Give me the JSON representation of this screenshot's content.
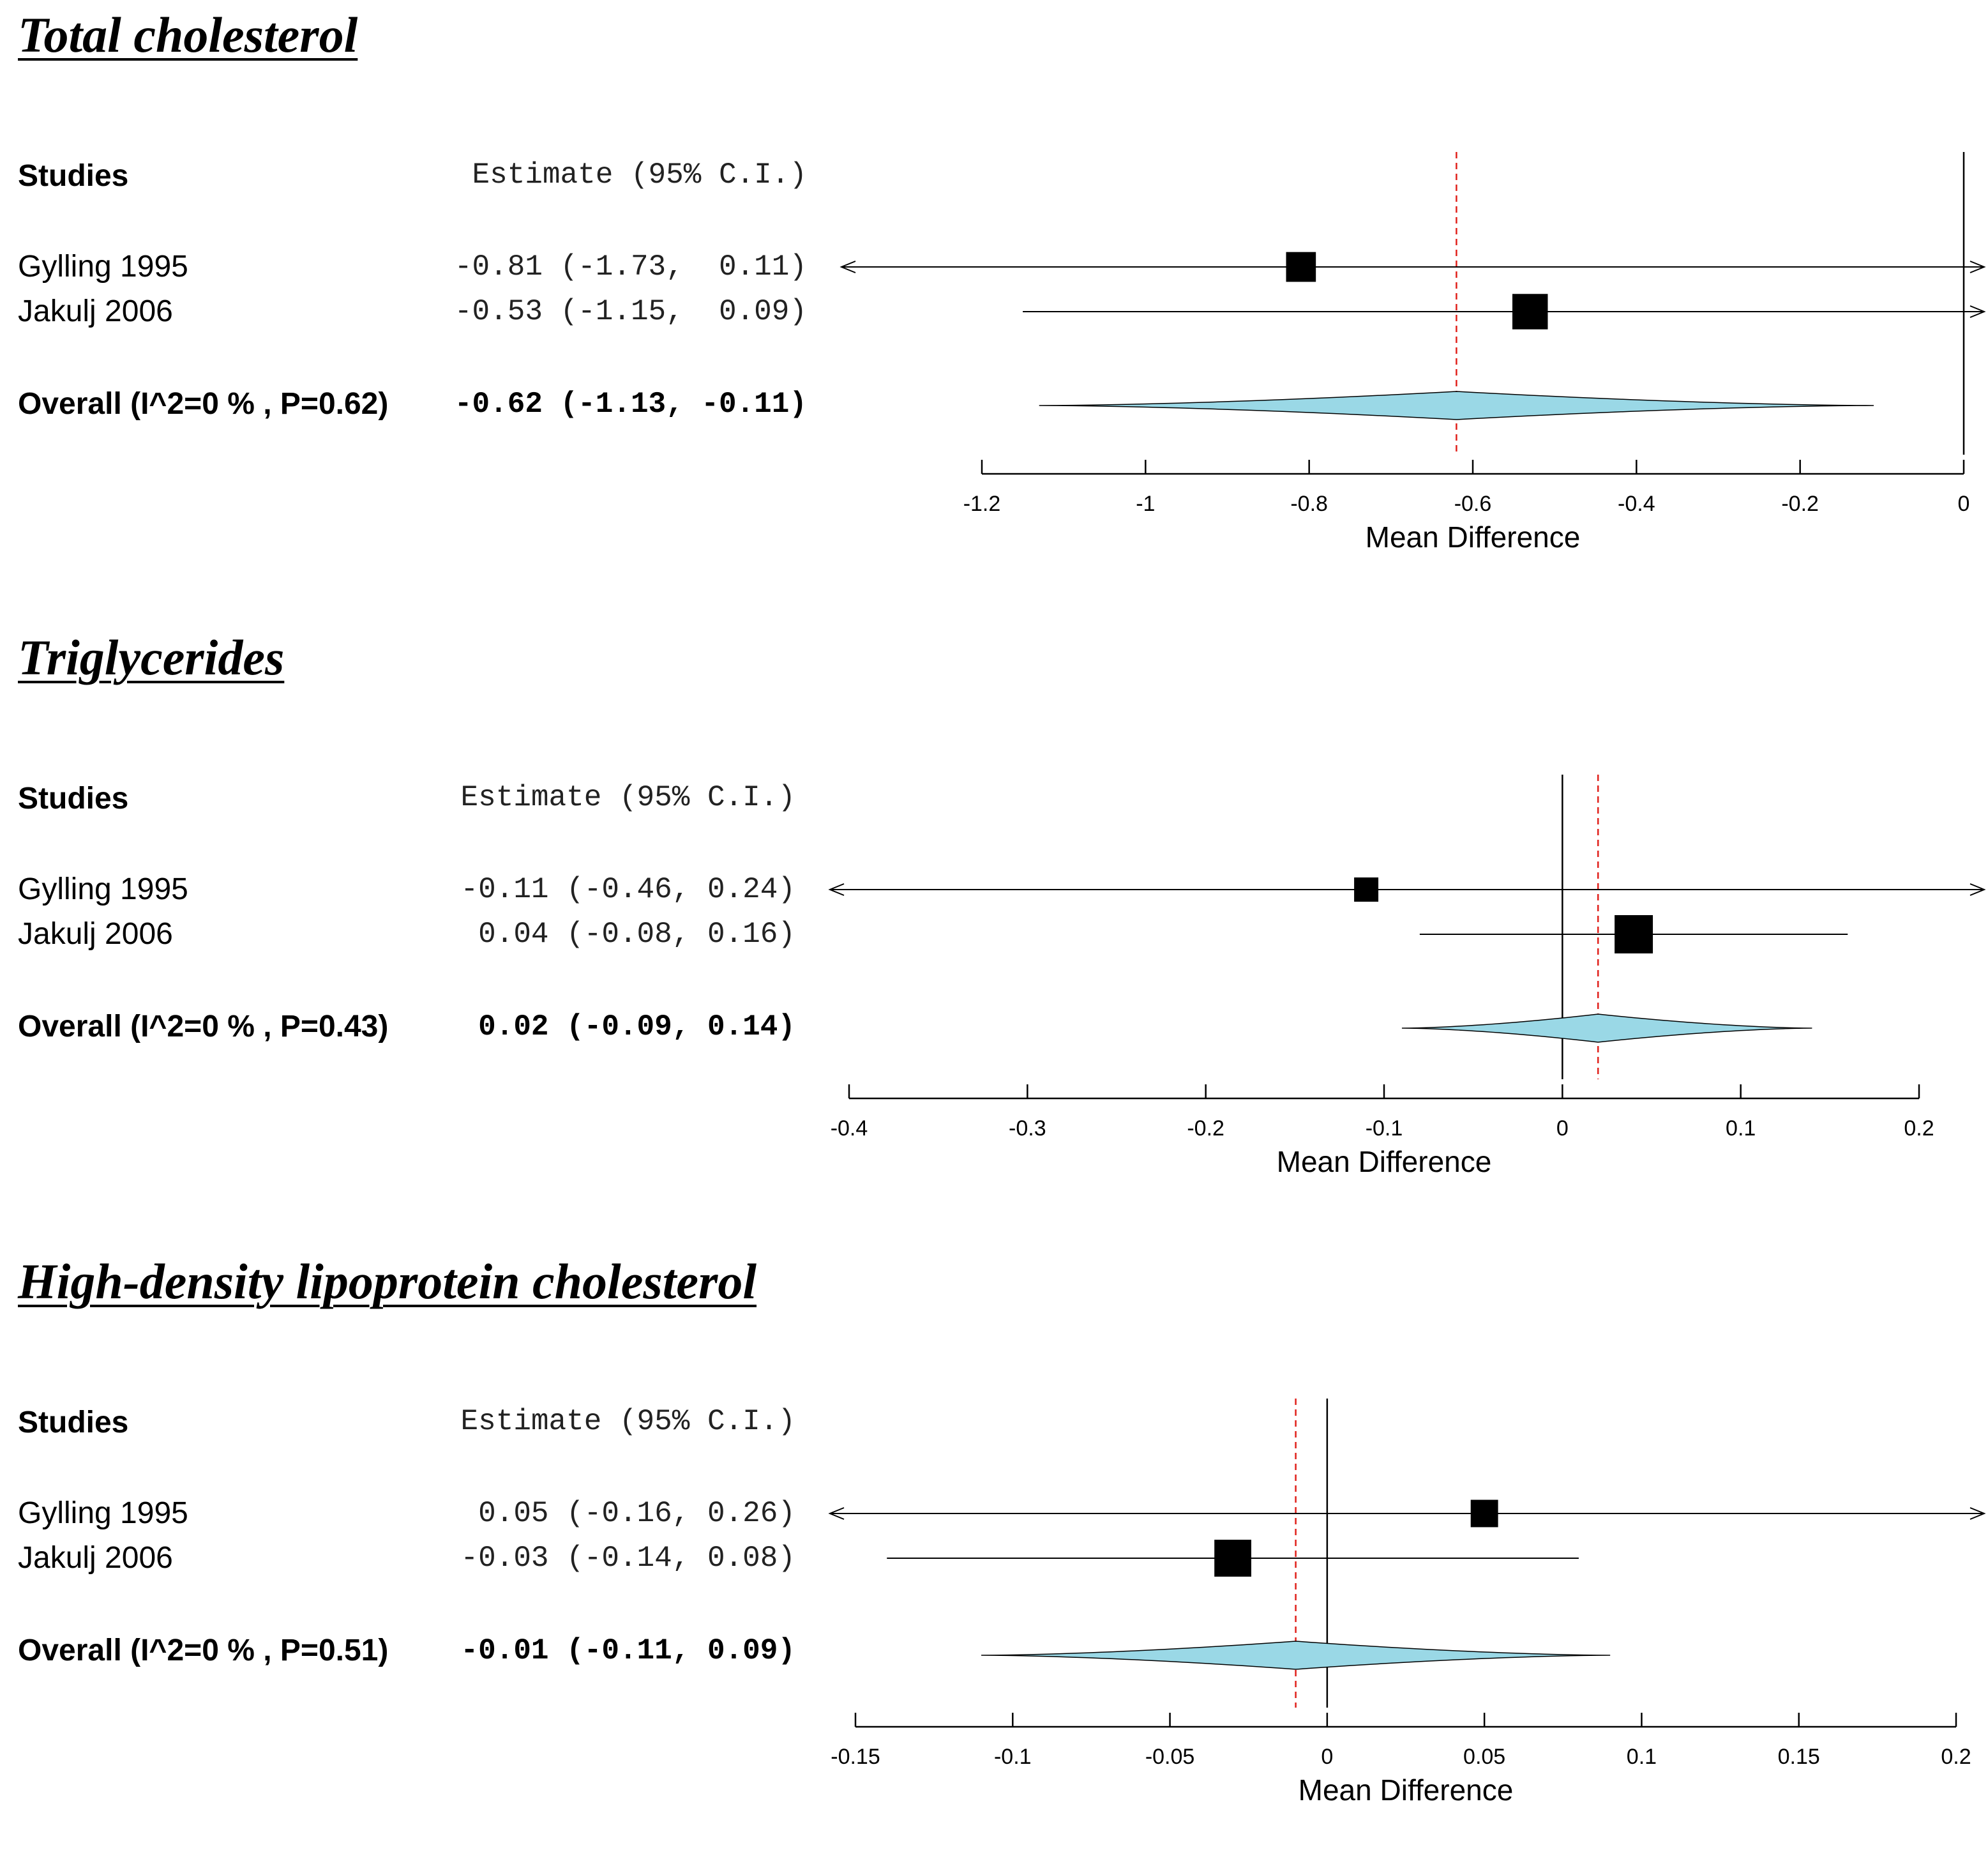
{
  "colors": {
    "diamond_fill": "#9ad8e6",
    "reference_line": "#e0201b",
    "marker": "#000000"
  },
  "chart_data": [
    {
      "type": "forest",
      "title": "Total cholesterol",
      "columns": {
        "studies": "Studies",
        "estimate": "Estimate (95% C.I.)"
      },
      "xlabel": "Mean Difference",
      "xlim": [
        -1.2,
        0
      ],
      "ticks": [
        -1.2,
        -1,
        -0.8,
        -0.6,
        -0.4,
        -0.2,
        0
      ],
      "tick_labels": [
        "-1.2",
        "-1",
        "-0.8",
        "-0.6",
        "-0.4",
        "-0.2",
        "0"
      ],
      "null_value": 0,
      "studies": [
        {
          "name": "Gylling 1995",
          "estimate_text": "-0.81 (-1.73,  0.11)",
          "est": -0.81,
          "lo": -1.73,
          "hi": 0.11,
          "weight": 0.33
        },
        {
          "name": "Jakulj 2006",
          "estimate_text": "-0.53 (-1.15,  0.09)",
          "est": -0.53,
          "lo": -1.15,
          "hi": 0.09,
          "weight": 0.67
        }
      ],
      "overall": {
        "label": "Overall (I^2=0 % , P=0.62)",
        "estimate_text": "-0.62 (-1.13, -0.11)",
        "est": -0.62,
        "lo": -1.13,
        "hi": -0.11
      }
    },
    {
      "type": "forest",
      "title": "Triglycerides",
      "columns": {
        "studies": "Studies",
        "estimate": "Estimate (95% C.I.)"
      },
      "xlabel": "Mean Difference",
      "xlim": [
        -0.4,
        0.2
      ],
      "ticks": [
        -0.4,
        -0.3,
        -0.2,
        -0.1,
        0,
        0.1,
        0.2
      ],
      "tick_labels": [
        "-0.4",
        "-0.3",
        "-0.2",
        "-0.1",
        "0",
        "0.1",
        "0.2"
      ],
      "null_value": 0,
      "studies": [
        {
          "name": "Gylling 1995",
          "estimate_text": "-0.11 (-0.46, 0.24)",
          "est": -0.11,
          "lo": -0.46,
          "hi": 0.24,
          "weight": 0.11
        },
        {
          "name": "Jakulj 2006",
          "estimate_text": " 0.04 (-0.08, 0.16)",
          "est": 0.04,
          "lo": -0.08,
          "hi": 0.16,
          "weight": 0.89
        }
      ],
      "overall": {
        "label": "Overall (I^2=0 % , P=0.43)",
        "estimate_text": " 0.02 (-0.09, 0.14)",
        "est": 0.02,
        "lo": -0.09,
        "hi": 0.14
      }
    },
    {
      "type": "forest",
      "title": "High-density lipoprotein cholesterol",
      "columns": {
        "studies": "Studies",
        "estimate": "Estimate (95% C.I.)"
      },
      "xlabel": "Mean Difference",
      "xlim": [
        -0.15,
        0.2
      ],
      "ticks": [
        -0.15,
        -0.1,
        -0.05,
        0,
        0.05,
        0.1,
        0.15,
        0.2
      ],
      "tick_labels": [
        "-0.15",
        "-0.1",
        "-0.05",
        "0",
        "0.05",
        "0.1",
        "0.15",
        "0.2"
      ],
      "null_value": 0,
      "studies": [
        {
          "name": "Gylling 1995",
          "estimate_text": " 0.05 (-0.16, 0.26)",
          "est": 0.05,
          "lo": -0.16,
          "hi": 0.26,
          "weight": 0.22
        },
        {
          "name": "Jakulj 2006",
          "estimate_text": "-0.03 (-0.14, 0.08)",
          "est": -0.03,
          "lo": -0.14,
          "hi": 0.08,
          "weight": 0.78
        }
      ],
      "overall": {
        "label": "Overall (I^2=0 % , P=0.51)",
        "estimate_text": "-0.01 (-0.11, 0.09)",
        "est": -0.01,
        "lo": -0.11,
        "hi": 0.09
      }
    }
  ]
}
